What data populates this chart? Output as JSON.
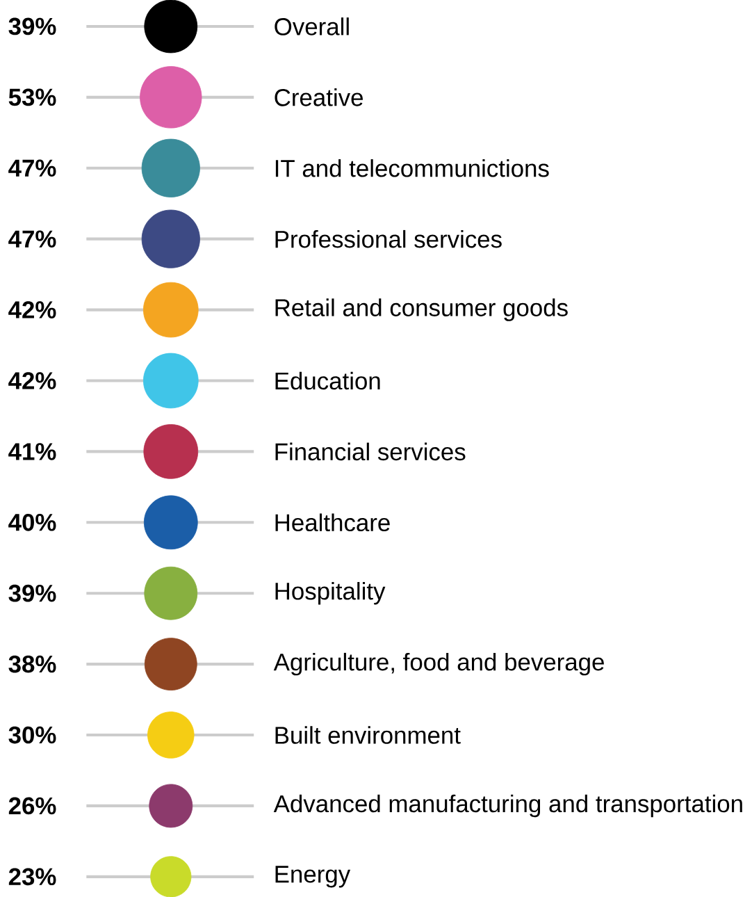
{
  "chart_data": {
    "type": "other",
    "categories": [
      "Overall",
      "Creative",
      "IT and telecommunictions",
      "Professional services",
      "Retail and consumer goods",
      "Education",
      "Financial services",
      "Healthcare",
      "Hospitality",
      "Agriculture, food and beverage",
      "Built environment",
      "Advanced manufacturing and transportation",
      "Energy"
    ],
    "values": [
      39,
      53,
      47,
      47,
      42,
      42,
      41,
      40,
      39,
      38,
      30,
      26,
      23
    ],
    "value_labels": [
      "39%",
      "53%",
      "47%",
      "47%",
      "42%",
      "42%",
      "41%",
      "40%",
      "39%",
      "38%",
      "30%",
      "26%",
      "23%"
    ],
    "colors": [
      "#000000",
      "#dd5fa8",
      "#3a8c9a",
      "#3d4a84",
      "#f4a521",
      "#40c5e8",
      "#b7304f",
      "#1b5ea8",
      "#88b040",
      "#8f4522",
      "#f5cd14",
      "#8c3a6c",
      "#c9db2a"
    ]
  }
}
